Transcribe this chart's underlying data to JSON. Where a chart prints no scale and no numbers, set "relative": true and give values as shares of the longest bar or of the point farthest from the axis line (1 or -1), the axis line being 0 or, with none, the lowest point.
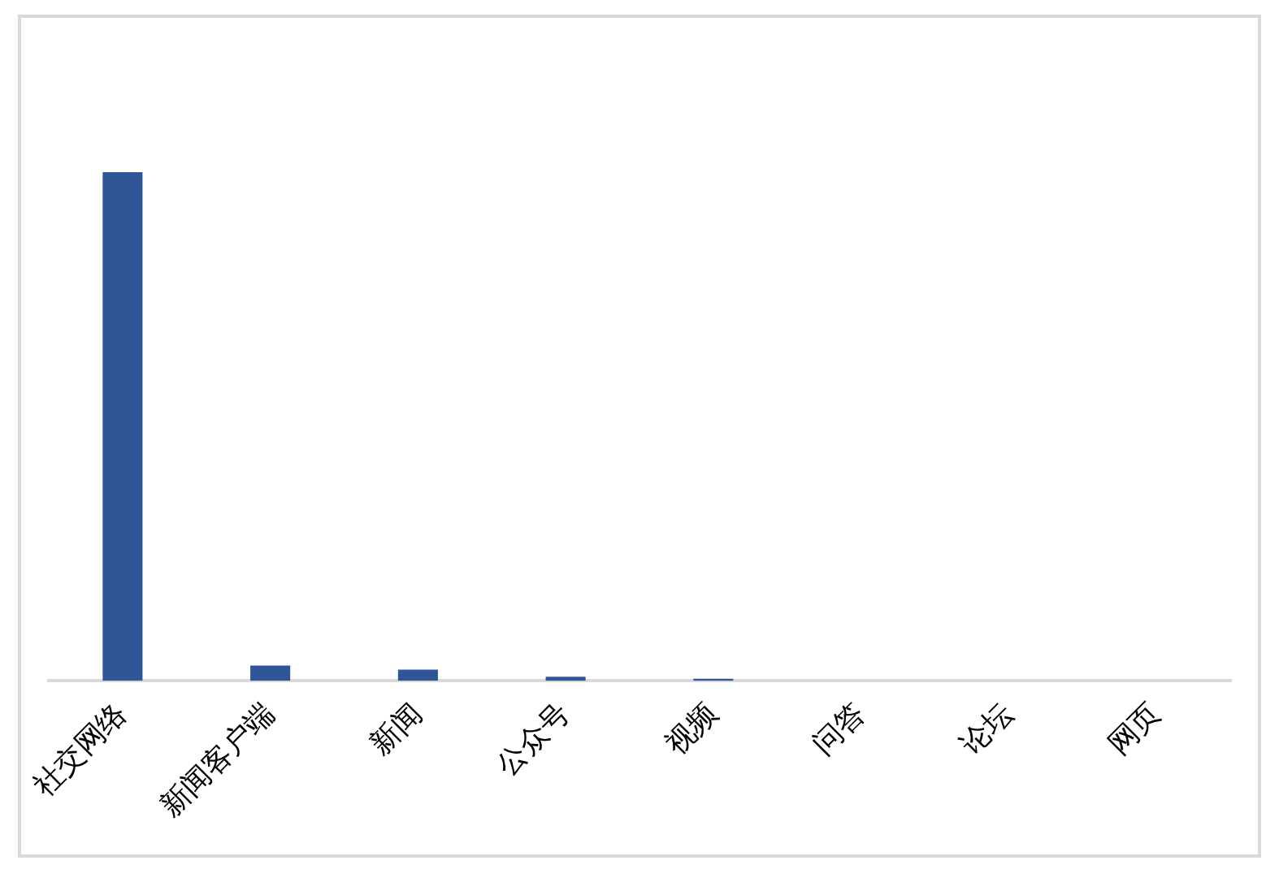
{
  "chart_data": {
    "type": "bar",
    "relative": true,
    "categories": [
      "社交网络",
      "新闻客户端",
      "新闻",
      "公众号",
      "视频",
      "问答",
      "论坛",
      "网页"
    ],
    "values": [
      1,
      0.03,
      0.022,
      0.008,
      0.004,
      0,
      0,
      0
    ],
    "color": "#2f5597"
  }
}
